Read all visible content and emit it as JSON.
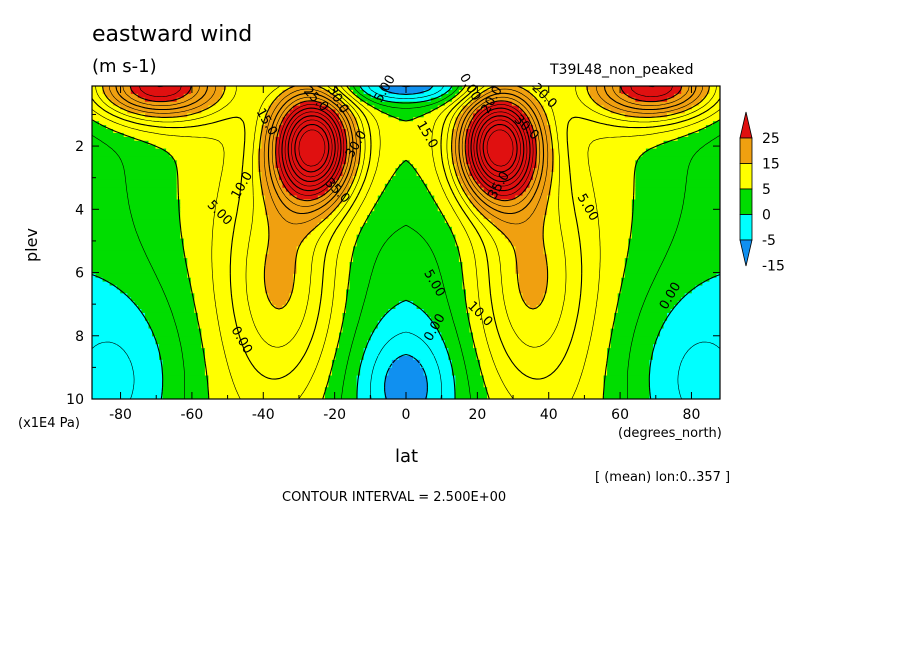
{
  "chart_data": {
    "type": "contour",
    "title": "eastward wind",
    "units": "(m s-1)",
    "run_name": "T39L48_non_peaked",
    "xlabel": "lat",
    "x_units": "(degrees_north)",
    "ylabel": "plev",
    "y_units": "(x1E4 Pa)",
    "x_ticks": [
      -80,
      -60,
      -40,
      -20,
      0,
      20,
      40,
      60,
      80
    ],
    "x_tick_labels": [
      "-80",
      "-60",
      "-40",
      "-20",
      "0",
      "20",
      "40",
      "60",
      "80"
    ],
    "xlim": [
      -88,
      88
    ],
    "y_ticks": [
      2,
      4,
      6,
      8,
      10
    ],
    "y_tick_labels": [
      "2",
      "4",
      "6",
      "8",
      "10"
    ],
    "ylim": [
      10,
      0.1
    ],
    "y_inverted": true,
    "region_note": "[ (mean) lon:0..357 ]",
    "contour_interval_text": "CONTOUR INTERVAL = 2.500E+00",
    "contour_interval": 2.5,
    "legend": {
      "levels": [
        25,
        15,
        5,
        0,
        -5,
        -15
      ],
      "level_labels": [
        "25",
        "15",
        "5",
        "0",
        "-5",
        "-15"
      ],
      "colors": [
        "#e01010",
        "#f0a010",
        "#ffff00",
        "#00dd00",
        "#00ffff",
        "#1090f0"
      ],
      "placement": "right"
    },
    "jets": [
      {
        "lat": -26,
        "plev": 2.0,
        "max": 40
      },
      {
        "lat": 26,
        "plev": 2.0,
        "max": 40
      }
    ],
    "contour_labels": [
      {
        "text": "15.0",
        "lat": -40,
        "plev": 1.3
      },
      {
        "text": "10.0",
        "lat": -45,
        "plev": 3.3
      },
      {
        "text": "5.00",
        "lat": -53,
        "plev": 4.2
      },
      {
        "text": "0.00",
        "lat": -47,
        "plev": 8.2
      },
      {
        "text": "30.0",
        "lat": -13,
        "plev": 2.0
      },
      {
        "text": "35.0",
        "lat": -20,
        "plev": 3.5
      },
      {
        "text": "15.0",
        "lat": 5,
        "plev": 1.7
      },
      {
        "text": "35.0",
        "lat": 27,
        "plev": 3.3
      },
      {
        "text": "30.0",
        "lat": 33,
        "plev": 1.5
      },
      {
        "text": "5.00",
        "lat": 7,
        "plev": 6.4
      },
      {
        "text": "0.00",
        "lat": 9,
        "plev": 7.8
      },
      {
        "text": "10.0",
        "lat": 20,
        "plev": 7.4
      },
      {
        "text": "5.00",
        "lat": 50,
        "plev": 4.0
      },
      {
        "text": "0.00",
        "lat": 75,
        "plev": 6.8
      },
      {
        "text": "20.0",
        "lat": 38,
        "plev": 0.5
      },
      {
        "text": "0.00",
        "lat": 17,
        "plev": 0.2
      },
      {
        "text": "5.00",
        "lat": -5,
        "plev": 0.25
      },
      {
        "text": "25.0",
        "lat": -26,
        "plev": 0.6
      },
      {
        "text": "30.0",
        "lat": -20,
        "plev": 0.6
      },
      {
        "text": "20.0",
        "lat": 25,
        "plev": 0.6
      }
    ]
  }
}
